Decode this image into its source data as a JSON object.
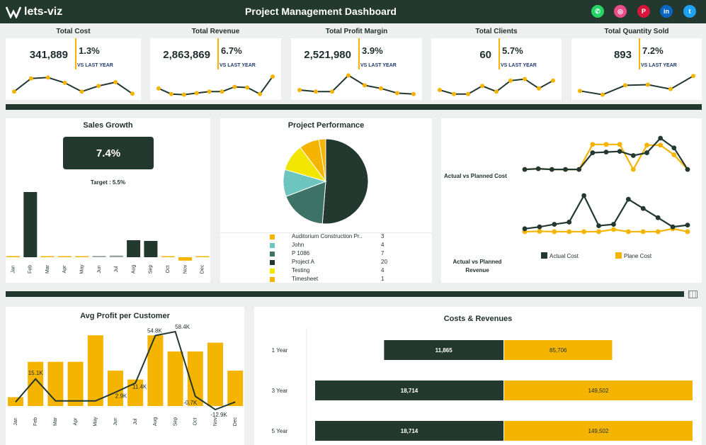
{
  "header": {
    "logo": "lets-viz",
    "title": "Project Management Dashboard",
    "social": [
      {
        "icon": "whatsapp-icon",
        "glyph": "✆",
        "color": "#25d366"
      },
      {
        "icon": "dribbble-icon",
        "glyph": "◎",
        "color": "#ea4c89"
      },
      {
        "icon": "pinterest-icon",
        "glyph": "P",
        "color": "#d7143a"
      },
      {
        "icon": "linkedin-icon",
        "glyph": "in",
        "color": "#0a66c2"
      },
      {
        "icon": "twitter-icon",
        "glyph": "t",
        "color": "#1da1f2"
      }
    ]
  },
  "colors": {
    "dark": "#23382f",
    "accent": "#f5b400",
    "teal": "#6cc6bf",
    "green": "#3d7366",
    "yellow": "#f2e600"
  },
  "kpis": [
    {
      "title": "Total Cost",
      "value": "341,889",
      "pct": "1.3%",
      "vs": "VS LAST YEAR",
      "spark": [
        0.2,
        0.62,
        0.65,
        0.48,
        0.2,
        0.38,
        0.5,
        0.13
      ]
    },
    {
      "title": "Total Revenue",
      "value": "2,863,869",
      "pct": "6.7%",
      "vs": "VS LAST YEAR",
      "spark": [
        0.3,
        0.12,
        0.1,
        0.15,
        0.2,
        0.2,
        0.35,
        0.33,
        0.12,
        0.68
      ]
    },
    {
      "title": "Total Profit Margin",
      "value": "2,521,980",
      "pct": "3.9%",
      "vs": "VS LAST YEAR",
      "spark": [
        0.25,
        0.2,
        0.2,
        0.72,
        0.4,
        0.3,
        0.15,
        0.12
      ]
    },
    {
      "title": "Total Clients",
      "value": "60",
      "pct": "5.7%",
      "vs": "VS LAST YEAR",
      "spark": [
        0.25,
        0.12,
        0.12,
        0.38,
        0.2,
        0.55,
        0.6,
        0.3,
        0.55
      ]
    },
    {
      "title": "Total Quantity Sold",
      "value": "893",
      "pct": "7.2%",
      "vs": "VS LAST YEAR",
      "spark": [
        0.22,
        0.1,
        0.4,
        0.42,
        0.28,
        0.7
      ]
    }
  ],
  "sales_growth": {
    "title": "Sales Growth",
    "value": "7.4%",
    "target": "Target : 5.5%",
    "chart_data": {
      "type": "bar",
      "categories": [
        "Jan",
        "Feb",
        "Mar",
        "Apr",
        "May",
        "Jun",
        "Jul",
        "Aug",
        "Sep",
        "Oct",
        "Nov",
        "Dec"
      ],
      "values": [
        0.8,
        46,
        0.5,
        0.5,
        0.5,
        0.9,
        1.2,
        12,
        11.5,
        0.5,
        -2.4,
        0.5
      ],
      "highlight": [
        7,
        8
      ]
    }
  },
  "project_performance": {
    "title": "Project Performance",
    "chart_data": {
      "type": "pie",
      "series": [
        {
          "name": "Auditorium Construction Pr..",
          "value": 3,
          "color": "#f5b400"
        },
        {
          "name": "John",
          "value": 4,
          "color": "#6cc6bf"
        },
        {
          "name": "P 1086",
          "value": 7,
          "color": "#3d7366"
        },
        {
          "name": "Project A",
          "value": 20,
          "color": "#23382f"
        },
        {
          "name": "Testing",
          "value": 4,
          "color": "#f2e600"
        },
        {
          "name": "Timesheet",
          "value": 1,
          "color": "#f5b400"
        }
      ],
      "slice_order": [
        3,
        2,
        1,
        4,
        0,
        5
      ]
    }
  },
  "actual_vs_planned": {
    "label_cost": "Actual vs Planned Cost",
    "label_revenue": "Actual vs Planned Revenue",
    "legend": [
      "Actual Cost",
      "Plane Cost"
    ],
    "chart_data": [
      {
        "type": "line",
        "series": [
          {
            "name": "Actual Cost",
            "values": [
              0.1,
              0.12,
              0.1,
              0.1,
              0.1,
              0.58,
              0.6,
              0.62,
              0.5,
              0.58,
              1.0,
              0.72,
              0.1
            ]
          },
          {
            "name": "Plane Cost",
            "values": [
              0.1,
              0.12,
              0.1,
              0.1,
              0.1,
              0.82,
              0.82,
              0.82,
              0.1,
              0.8,
              0.8,
              0.52,
              0.1
            ]
          }
        ]
      },
      {
        "type": "line",
        "series": [
          {
            "name": "Actual Cost",
            "values": [
              0.1,
              0.15,
              0.22,
              0.28,
              1.0,
              0.18,
              0.22,
              0.9,
              0.65,
              0.4,
              0.15,
              0.2
            ]
          },
          {
            "name": "Plane Cost",
            "values": [
              0.02,
              0.03,
              0.02,
              0.02,
              0.02,
              0.02,
              0.08,
              0.02,
              0.02,
              0.02,
              0.1,
              0.02
            ]
          }
        ]
      }
    ]
  },
  "avg_profit": {
    "title": "Avg Profit per Customer",
    "chart_data": {
      "type": "bar",
      "categories": [
        "Jan",
        "Feb",
        "Mar",
        "Apr",
        "May",
        "Jun",
        "Jul",
        "Aug",
        "Sep",
        "Oct",
        "Nov",
        "Dec"
      ],
      "bars": [
        0.12,
        0.6,
        0.6,
        0.6,
        0.96,
        0.48,
        0.36,
        0.96,
        0.74,
        0.74,
        0.86,
        0.48
      ],
      "line": [
        -6,
        15.1,
        -5,
        -5,
        -5,
        2.9,
        11.4,
        54.8,
        58.4,
        -0.7,
        -12.9,
        -6
      ],
      "labels": [
        {
          "index": 1,
          "text": "15.1K"
        },
        {
          "index": 5,
          "text": "2.9K"
        },
        {
          "index": 6,
          "text": "11.4K"
        },
        {
          "index": 7,
          "text": "54.8K"
        },
        {
          "index": 8,
          "text": "58.4K"
        },
        {
          "index": 9,
          "text": "-0.7K"
        },
        {
          "index": 10,
          "text": "-12.9K"
        }
      ]
    }
  },
  "costs_revenues": {
    "title": "Costs & Revenues",
    "chart_data": {
      "type": "bar",
      "categories": [
        "1 Year",
        "3 Year",
        "5 Year"
      ],
      "series": [
        {
          "name": "Costs",
          "values": [
            11865,
            18714,
            18714
          ],
          "labels": [
            "11,865",
            "18,714",
            "18,714"
          ]
        },
        {
          "name": "Revenues",
          "values": [
            85706,
            149502,
            149502
          ],
          "labels": [
            "85,706",
            "149,502",
            "149,502"
          ]
        }
      ]
    }
  }
}
